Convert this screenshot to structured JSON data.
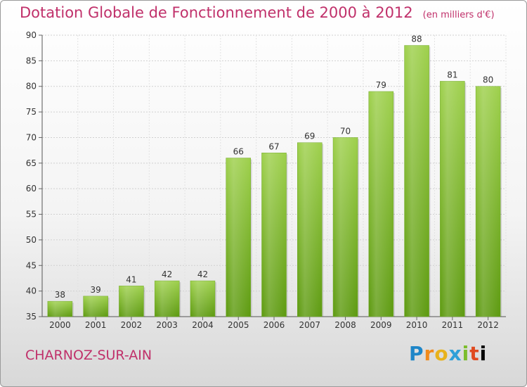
{
  "header": {
    "title": "Dotation Globale de Fonctionnement de 2000 à 2012",
    "subtitle": "(en milliers d'€)"
  },
  "footer": {
    "commune": "CHARNOZ-SUR-AIN",
    "logo": [
      "P",
      "r",
      "o",
      "x",
      "i",
      "t",
      "i"
    ]
  },
  "colors": {
    "title": "#c0306a",
    "bar_top": "#9ed04c",
    "bar_bottom": "#5d9a10"
  },
  "chart_data": {
    "type": "bar",
    "categories": [
      "2000",
      "2001",
      "2002",
      "2003",
      "2004",
      "2005",
      "2006",
      "2007",
      "2008",
      "2009",
      "2010",
      "2011",
      "2012"
    ],
    "values": [
      38,
      39,
      41,
      42,
      42,
      66,
      67,
      69,
      70,
      79,
      88,
      81,
      80
    ],
    "title": "Dotation Globale de Fonctionnement de 2000 à 2012",
    "subtitle": "(en milliers d'€)",
    "ylim": [
      35,
      90
    ],
    "yticks": [
      35,
      40,
      45,
      50,
      55,
      60,
      65,
      70,
      75,
      80,
      85,
      90
    ],
    "grid": true,
    "legend": "none"
  }
}
